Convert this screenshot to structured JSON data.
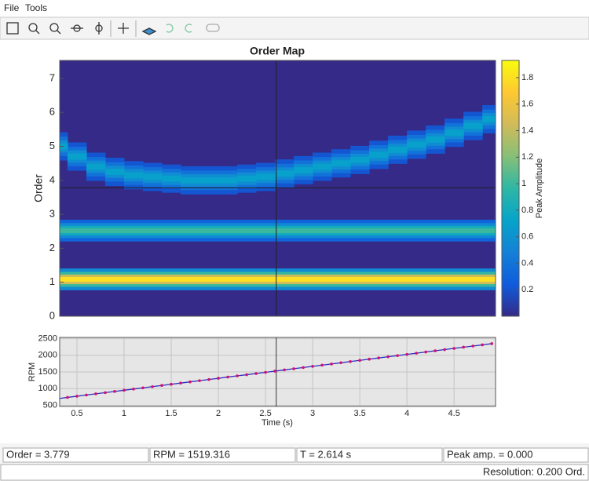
{
  "menu": [
    "File",
    "Tools"
  ],
  "chart_data": [
    {
      "type": "heatmap",
      "title": "Order Map",
      "ylabel": "Order",
      "xlim": [
        0.317,
        4.94
      ],
      "ylim": [
        0,
        7.53
      ],
      "yticks": [
        0,
        1,
        2,
        3,
        4,
        5,
        6,
        7
      ],
      "colorbar": {
        "label": "Peak Amplitude",
        "clim": [
          0,
          1.93
        ],
        "ticks": [
          0.2,
          0.4,
          0.6,
          0.8,
          1,
          1.2,
          1.4,
          1.6,
          1.8
        ]
      },
      "colormap": [
        "#352a87",
        "#0f5cdd",
        "#1481d6",
        "#06a4ca",
        "#2eb7a4",
        "#87bf77",
        "#d1bb59",
        "#fec832",
        "#f9fb0e"
      ],
      "tracks": [
        {
          "order": 1.085,
          "amplitude": 1.8
        },
        {
          "order": 2.52,
          "amplitude": 1.0
        },
        {
          "x": [
            0.3,
            0.5,
            0.7,
            0.9,
            1.1,
            1.3,
            1.5,
            1.7,
            1.9,
            2.1,
            2.3,
            2.5,
            2.7,
            2.9,
            3.1,
            3.3,
            3.5,
            3.7,
            3.9,
            4.1,
            4.3,
            4.5,
            4.7,
            4.9
          ],
          "orders": [
            5.0,
            4.7,
            4.4,
            4.25,
            4.15,
            4.1,
            4.05,
            4.0,
            4.0,
            4.0,
            4.05,
            4.1,
            4.2,
            4.3,
            4.4,
            4.5,
            4.6,
            4.75,
            4.9,
            5.05,
            5.2,
            5.4,
            5.6,
            5.8
          ],
          "amplitude": 0.7
        }
      ],
      "cursor": {
        "x": 2.614,
        "y": 3.779
      }
    },
    {
      "type": "line",
      "xlabel": "Time (s)",
      "ylabel": "RPM",
      "xlim": [
        0.317,
        4.94
      ],
      "ylim": [
        464,
        2537
      ],
      "xticks": [
        0.5,
        1,
        1.5,
        2,
        2.5,
        3,
        3.5,
        4,
        4.5
      ],
      "yticks": [
        500,
        1000,
        1500,
        2000,
        2500
      ],
      "grid": true,
      "color": "#2c2cc8",
      "marker_color": "#d0106a",
      "x": [
        0.3,
        0.4,
        0.5,
        0.6,
        0.7,
        0.8,
        0.9,
        1.0,
        1.1,
        1.2,
        1.3,
        1.4,
        1.5,
        1.6,
        1.7,
        1.8,
        1.9,
        2.0,
        2.1,
        2.2,
        2.3,
        2.4,
        2.5,
        2.6,
        2.7,
        2.8,
        2.9,
        3.0,
        3.1,
        3.2,
        3.3,
        3.4,
        3.5,
        3.6,
        3.7,
        3.8,
        3.9,
        4.0,
        4.1,
        4.2,
        4.3,
        4.4,
        4.5,
        4.6,
        4.7,
        4.8,
        4.9
      ],
      "values": [
        700,
        736,
        772,
        808,
        843,
        879,
        915,
        951,
        987,
        1023,
        1059,
        1095,
        1130,
        1166,
        1202,
        1238,
        1274,
        1310,
        1346,
        1382,
        1417,
        1453,
        1489,
        1525,
        1561,
        1597,
        1633,
        1669,
        1704,
        1740,
        1776,
        1812,
        1848,
        1884,
        1920,
        1956,
        1991,
        2027,
        2063,
        2099,
        2135,
        2171,
        2207,
        2243,
        2278,
        2314,
        2350
      ]
    }
  ],
  "status": {
    "fields": [
      "Order = 3.779",
      "RPM = 1519.316",
      "T = 2.614 s",
      "Peak amp. = 0.000"
    ],
    "resolution": "Resolution: 0.200 Ord."
  }
}
